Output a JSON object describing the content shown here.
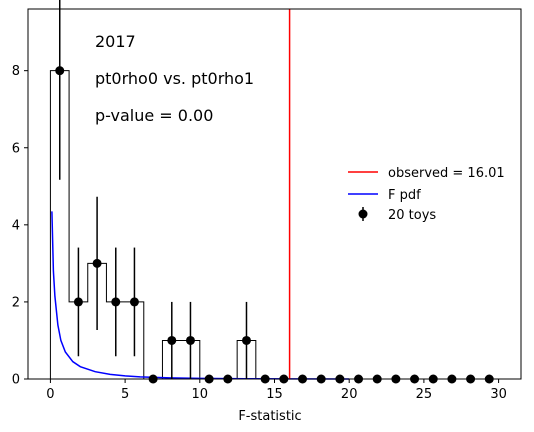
{
  "chart_data": {
    "type": "histogram",
    "xlabel": "F-statistic",
    "ylabel": "",
    "xlim": [
      -1.5,
      31.5
    ],
    "ylim": [
      0,
      9.6
    ],
    "xticks": [
      0,
      5,
      10,
      15,
      20,
      25,
      30
    ],
    "yticks": [
      0,
      2,
      4,
      6,
      8
    ],
    "annotations": [
      "2017",
      "pt0rho0 vs. pt0rho1",
      "p-value = 0.00"
    ],
    "histogram": {
      "bin_edges": [
        0,
        1.25,
        2.5,
        3.75,
        5,
        6.25,
        7.5,
        8.75,
        10,
        11.25,
        12.5,
        13.75,
        15,
        16.25,
        17.5,
        18.75,
        20,
        21.25,
        22.5,
        23.75,
        25,
        26.25,
        27.5,
        28.75,
        30
      ],
      "counts": [
        8,
        2,
        3,
        2,
        2,
        0,
        1,
        1,
        0,
        0,
        1,
        0,
        0,
        0,
        0,
        0,
        0,
        0,
        0,
        0,
        0,
        0,
        0,
        0
      ]
    },
    "series": [
      {
        "name": "20 toys",
        "kind": "errorbar",
        "color": "#000000",
        "x": [
          0.625,
          1.875,
          3.125,
          4.375,
          5.625,
          6.875,
          8.125,
          9.375,
          10.625,
          11.875,
          13.125,
          14.375,
          15.625,
          16.875,
          18.125,
          19.375,
          20.625,
          21.875,
          23.125,
          24.375,
          25.625,
          26.875,
          28.125,
          29.375
        ],
        "y": [
          8,
          2,
          3,
          2,
          2,
          0,
          1,
          1,
          0,
          0,
          1,
          0,
          0,
          0,
          0,
          0,
          0,
          0,
          0,
          0,
          0,
          0,
          0,
          0
        ],
        "yerr_low": [
          2.83,
          1.41,
          1.73,
          1.41,
          1.41,
          0,
          1,
          1,
          0,
          0,
          1,
          0,
          0,
          0,
          0,
          0,
          0,
          0,
          0,
          0,
          0,
          0,
          0,
          0
        ],
        "yerr_high": [
          2.83,
          1.41,
          1.73,
          1.41,
          1.41,
          0,
          1,
          1,
          0,
          0,
          1,
          0,
          0,
          0,
          0,
          0,
          0,
          0,
          0,
          0,
          0,
          0,
          0,
          0
        ]
      },
      {
        "name": "F pdf",
        "kind": "line",
        "color": "#0000ff",
        "x": [
          0.1,
          0.2,
          0.3,
          0.5,
          0.7,
          1,
          1.5,
          2,
          3,
          4,
          5,
          6,
          8,
          10,
          13,
          16,
          20
        ],
        "y": [
          4.35,
          2.8,
          2.15,
          1.4,
          1.0,
          0.7,
          0.45,
          0.32,
          0.19,
          0.12,
          0.08,
          0.055,
          0.03,
          0.015,
          0.007,
          0.003,
          0.001
        ]
      },
      {
        "name": "observed = 16.01",
        "kind": "vline",
        "color": "#ff0000",
        "x": 16.01
      }
    ],
    "legend_position": "center-right"
  }
}
